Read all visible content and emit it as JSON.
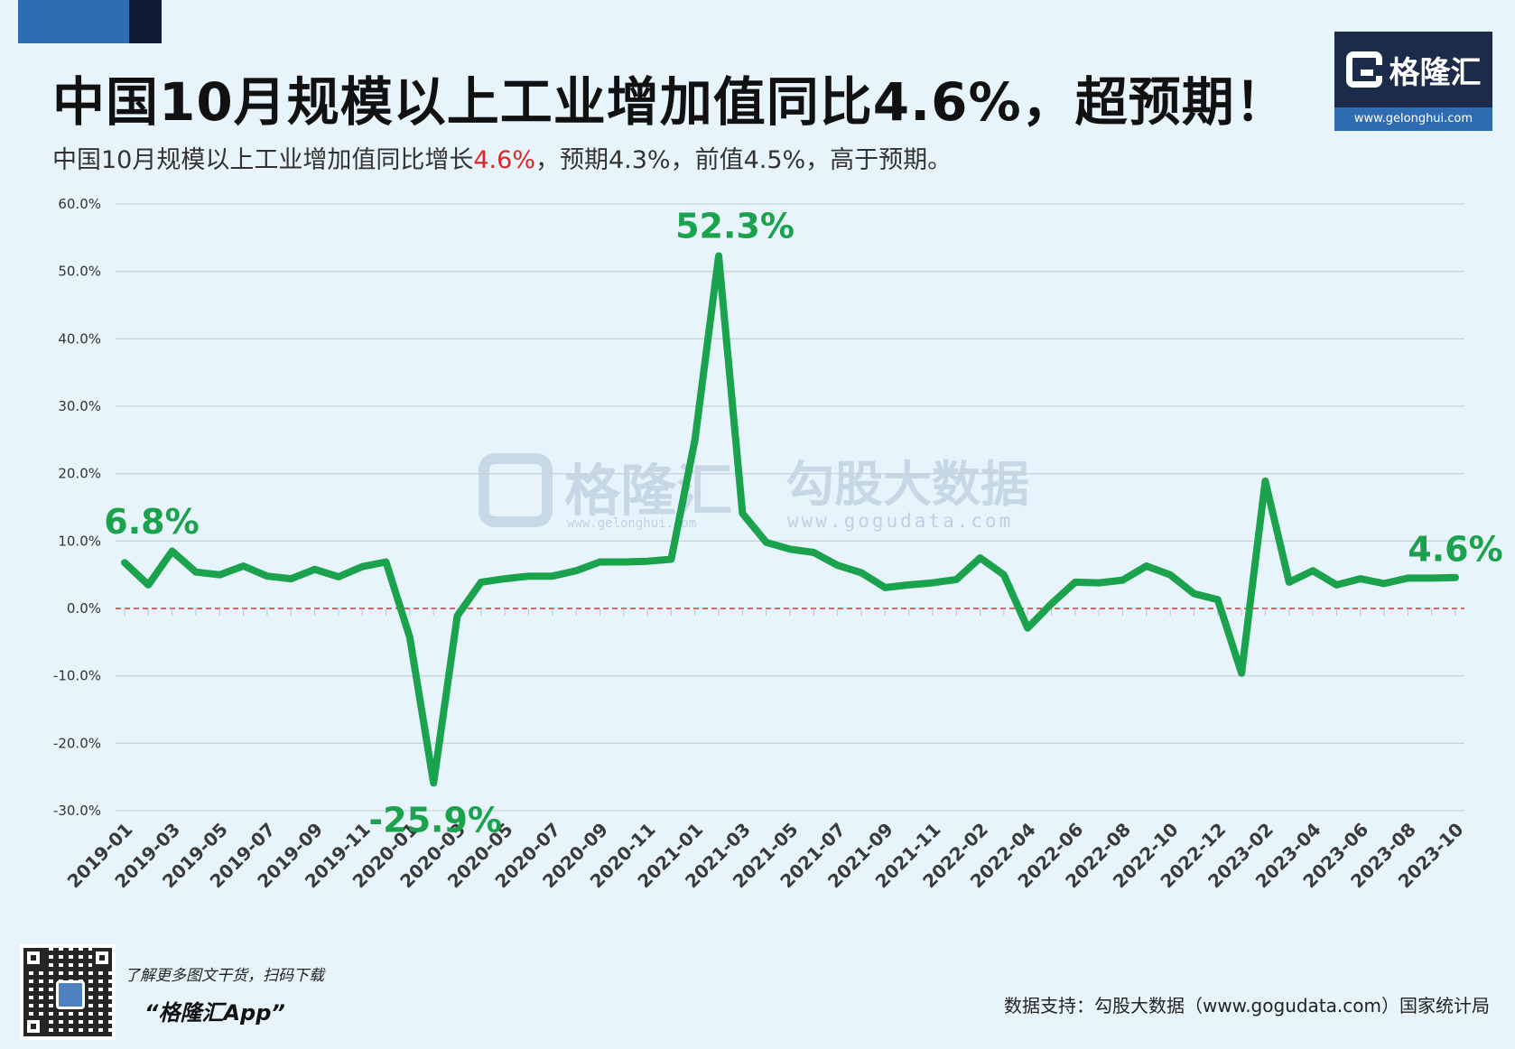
{
  "title": "中国10月规模以上工业增加值同比4.6%，超预期！",
  "subtitle": {
    "prefix": "中国10月规模以上工业增加值同比增长",
    "highlight": "4.6%",
    "suffix": "，预期4.3%，前值4.5%，高于预期。"
  },
  "logo": {
    "name": "格隆汇",
    "url": "www.gelonghui.com"
  },
  "watermark": {
    "brand1": "格隆汇",
    "brand1_url": "www.gelonghui.com",
    "brand2": "勾股大数据",
    "brand2_url": "www.gogudata.com"
  },
  "footer": {
    "promo_line1": "了解更多图文干货，扫码下载",
    "promo_line2": "“格隆汇App”",
    "source": "数据支持：勾股大数据（www.gogudata.com）国家统计局"
  },
  "colors": {
    "line": "#1aa24c",
    "zero_line": "#e03030",
    "grid": "#c9d3db",
    "accent_red": "#e02424",
    "brand_blue": "#2e6db4",
    "brand_navy": "#1c2b4a"
  },
  "chart_data": {
    "type": "line",
    "title": "",
    "xlabel": "",
    "ylabel": "",
    "ylim": [
      -30,
      60
    ],
    "yticks": [
      60,
      50,
      40,
      30,
      20,
      10,
      0,
      -10,
      -20,
      -30
    ],
    "ytick_labels": [
      "60.0%",
      "50.0%",
      "40.0%",
      "30.0%",
      "20.0%",
      "10.0%",
      "0.0%",
      "-10.0%",
      "-20.0%",
      "-30.0%"
    ],
    "grid": true,
    "reference_line": 0,
    "x": [
      "2019-01",
      "2019-02",
      "2019-03",
      "2019-04",
      "2019-05",
      "2019-06",
      "2019-07",
      "2019-08",
      "2019-09",
      "2019-10",
      "2019-11",
      "2019-12",
      "2020-01",
      "2020-02",
      "2020-03",
      "2020-04",
      "2020-05",
      "2020-06",
      "2020-07",
      "2020-08",
      "2020-09",
      "2020-10",
      "2020-11",
      "2020-12",
      "2021-01",
      "2021-02",
      "2021-03",
      "2021-04",
      "2021-05",
      "2021-06",
      "2021-07",
      "2021-08",
      "2021-09",
      "2021-10",
      "2021-11",
      "2021-12",
      "2022-02",
      "2022-03",
      "2022-04",
      "2022-05",
      "2022-06",
      "2022-07",
      "2022-08",
      "2022-09",
      "2022-10",
      "2022-11",
      "2022-12",
      "2023-01",
      "2023-02",
      "2023-03",
      "2023-04",
      "2023-05",
      "2023-06",
      "2023-07",
      "2023-08",
      "2023-09",
      "2023-10"
    ],
    "xtick_labels": [
      "2019-01",
      "2019-03",
      "2019-05",
      "2019-07",
      "2019-09",
      "2019-11",
      "2020-01",
      "2020-03",
      "2020-05",
      "2020-07",
      "2020-09",
      "2020-11",
      "2021-01",
      "2021-03",
      "2021-05",
      "2021-07",
      "2021-09",
      "2021-11",
      "2022-02",
      "2022-04",
      "2022-06",
      "2022-08",
      "2022-10",
      "2022-12",
      "2023-02",
      "2023-04",
      "2023-06",
      "2023-08",
      "2023-10"
    ],
    "series": [
      {
        "values": [
          6.8,
          3.5,
          8.5,
          5.4,
          5.0,
          6.3,
          4.8,
          4.4,
          5.8,
          4.7,
          6.2,
          6.9,
          -4.3,
          -25.9,
          -1.1,
          3.9,
          4.4,
          4.8,
          4.8,
          5.6,
          6.9,
          6.9,
          7.0,
          7.3,
          25.0,
          52.3,
          14.1,
          9.8,
          8.8,
          8.3,
          6.4,
          5.3,
          3.1,
          3.5,
          3.8,
          4.3,
          7.5,
          5.0,
          -2.9,
          0.7,
          3.9,
          3.8,
          4.2,
          6.3,
          5.0,
          2.2,
          1.3,
          -9.6,
          18.9,
          3.9,
          5.6,
          3.5,
          4.4,
          3.7,
          4.5,
          4.5,
          4.6
        ]
      }
    ],
    "annotations": [
      {
        "x": "2019-01",
        "y": 6.8,
        "text": "6.8%"
      },
      {
        "x": "2020-02",
        "y": -25.9,
        "text": "-25.9%"
      },
      {
        "x": "2021-02",
        "y": 52.3,
        "text": "52.3%"
      },
      {
        "x": "2023-10",
        "y": 4.6,
        "text": "4.6%"
      }
    ]
  }
}
